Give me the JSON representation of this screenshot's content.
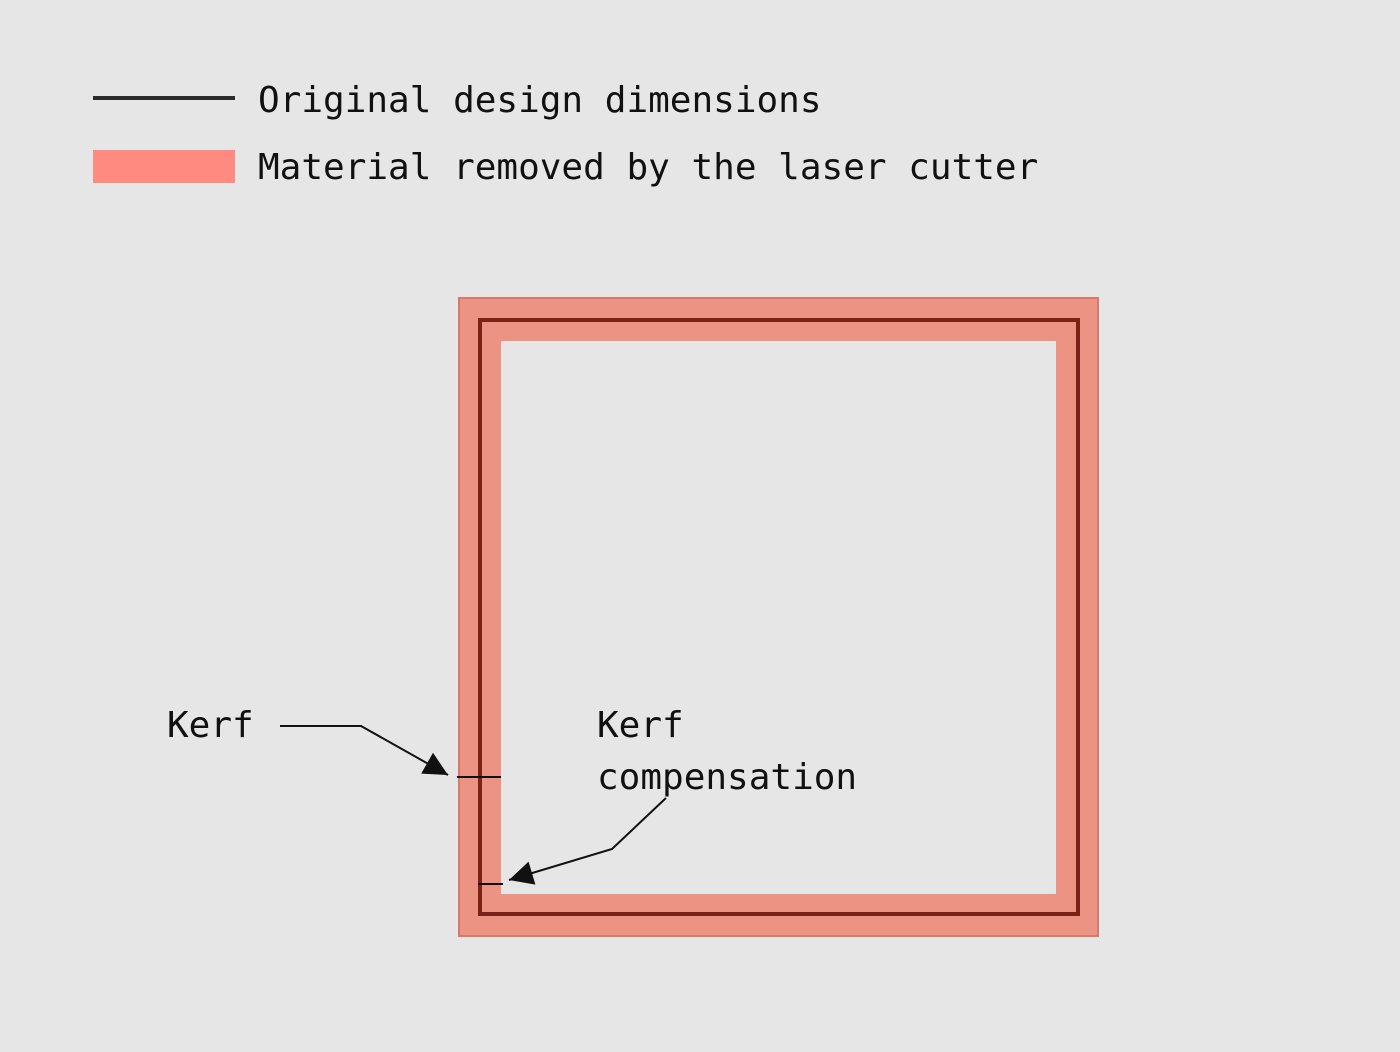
{
  "legend": {
    "items": [
      {
        "label": "Original design dimensions",
        "swatch": "line",
        "color": "#2b2b2b"
      },
      {
        "label": "Material removed by the laser cutter",
        "swatch": "band",
        "color": "#ff8a80"
      }
    ]
  },
  "annotations": {
    "kerf": "Kerf",
    "kerf_compensation_line1": "Kerf",
    "kerf_compensation_line2": "compensation"
  },
  "colors": {
    "background": "#e6e6e6",
    "design_outline": "#7a2216",
    "removed_band": "#ec9384",
    "removed_band_edge": "#d8796c",
    "text": "#111111",
    "arrow": "#111111"
  }
}
